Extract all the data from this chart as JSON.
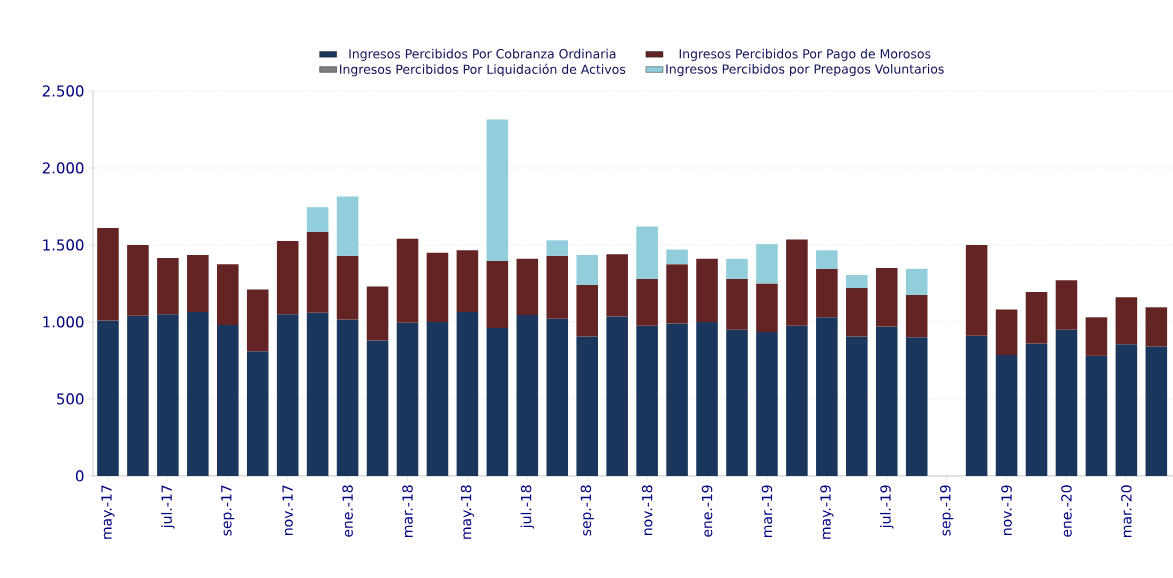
{
  "chart_data": {
    "type": "bar",
    "stacked": true,
    "categories": [
      "may.-17",
      null,
      "jul.-17",
      null,
      "sep.-17",
      null,
      "nov.-17",
      null,
      "ene.-18",
      null,
      "mar.-18",
      null,
      "may.-18",
      null,
      "jul.-18",
      null,
      "sep.-18",
      null,
      "nov.-18",
      null,
      "ene.-19",
      null,
      "mar.-19",
      null,
      "may.-19",
      null,
      "jul.-19",
      null,
      "sep.-19",
      null,
      "nov.-19",
      null,
      "ene.-20",
      null,
      "mar.-20",
      null
    ],
    "series": [
      {
        "name": "Ingresos Percibidos Por Cobranza Ordinaria",
        "color": "#1b365d",
        "values": [
          1010,
          1040,
          1050,
          1065,
          980,
          810,
          1050,
          1060,
          1015,
          880,
          995,
          1000,
          1065,
          960,
          1045,
          1020,
          905,
          1035,
          975,
          990,
          1000,
          950,
          935,
          975,
          1030,
          905,
          970,
          900,
          null,
          910,
          785,
          860,
          950,
          780,
          855,
          840
        ]
      },
      {
        "name": "Ingresos Percibidos Por Pago de Morosos",
        "color": "#632423",
        "values": [
          600,
          460,
          365,
          370,
          395,
          400,
          475,
          525,
          415,
          350,
          545,
          450,
          400,
          435,
          365,
          410,
          335,
          405,
          305,
          385,
          410,
          330,
          315,
          560,
          315,
          315,
          380,
          275,
          null,
          590,
          295,
          335,
          320,
          250,
          305,
          255
        ]
      },
      {
        "name": "Ingresos Percibidos Por Liquidación de Activos",
        "color": "#7f7f7f",
        "values": [
          null,
          null,
          null,
          null,
          null,
          null,
          null,
          null,
          null,
          null,
          null,
          null,
          null,
          null,
          null,
          null,
          null,
          null,
          null,
          null,
          null,
          null,
          null,
          null,
          null,
          null,
          null,
          null,
          null,
          null,
          null,
          null,
          null,
          null,
          null,
          null
        ]
      },
      {
        "name": "Ingresos Percibidos por Prepagos Voluntarios",
        "color": "#92cddc",
        "values": [
          null,
          null,
          null,
          null,
          null,
          null,
          null,
          160,
          385,
          null,
          null,
          null,
          null,
          920,
          null,
          100,
          195,
          null,
          340,
          95,
          null,
          130,
          255,
          null,
          120,
          85,
          null,
          170,
          null,
          null,
          null,
          null,
          null,
          null,
          null,
          null
        ]
      }
    ],
    "ylim": [
      0,
      2500
    ],
    "yticks": [
      0,
      500,
      {
        "value": 1000,
        "label": "1.000"
      },
      {
        "value": 1500,
        "label": "1.500"
      },
      {
        "value": 2000,
        "label": "2.000"
      },
      {
        "value": 2500,
        "label": "2.500"
      }
    ],
    "grid": "y",
    "legend": "top"
  }
}
